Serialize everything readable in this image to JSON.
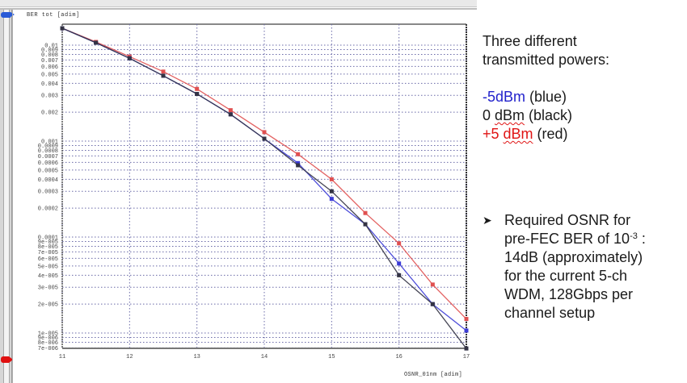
{
  "window": {
    "y_axis_title": "BER tot  [adim]",
    "x_axis_title": "OSNR_01nm [adim]"
  },
  "notes": {
    "heading_line1": "Three different",
    "heading_line2": "transmitted powers:",
    "legend": [
      {
        "label": "-5dBm",
        "suffix": " (blue)",
        "color": "#2222cc"
      },
      {
        "label_prefix": "0 ",
        "label": "dBm",
        "suffix": " (black)",
        "color": "#1a1a1a"
      },
      {
        "label_prefix": "+5 ",
        "label": "dBm",
        "suffix": " (red)",
        "color": "#e01515"
      }
    ],
    "bullet": {
      "line1": "Required OSNR for",
      "line2_pre": "pre-FEC BER of 10",
      "line2_sup": "-3",
      "line2_post": " :",
      "line3": "14dB (approximately)",
      "line4": "for the current 5-ch",
      "line5": "WDM, 128Gbps per",
      "line6": "channel setup"
    }
  },
  "chart_data": {
    "type": "line",
    "title": "",
    "xlabel": "OSNR_01nm [adim]",
    "ylabel": "BER tot [adim]",
    "yscale": "log",
    "xlim": [
      11,
      17
    ],
    "ylim": [
      6.9e-06,
      0.015
    ],
    "grid": true,
    "x_ticks": [
      "11",
      "12",
      "13",
      "14",
      "15",
      "16",
      "17"
    ],
    "y_ticks": [
      "0.01",
      "0.009",
      "0.008",
      "0.007",
      "0.006",
      "0.005",
      "0.004",
      "0.003",
      "0.002",
      "0.001",
      "0.0009",
      "0.0008",
      "0.0007",
      "0.0006",
      "0.0005",
      "0.0004",
      "0.0003",
      "0.0002",
      "0.0001",
      "9e-005",
      "8e-005",
      "7e-005",
      "6e-005",
      "5e-005",
      "4e-005",
      "3e-005",
      "2e-005",
      "1e-005",
      "9e-006",
      "8e-006",
      "7e-006"
    ],
    "y_tick_values": [
      0.01,
      0.009,
      0.008,
      0.007,
      0.006,
      0.005,
      0.004,
      0.003,
      0.002,
      0.001,
      0.0009,
      0.0008,
      0.0007,
      0.0006,
      0.0005,
      0.0004,
      0.0003,
      0.0002,
      0.0001,
      9e-05,
      8e-05,
      7e-05,
      6e-05,
      5e-05,
      4e-05,
      3e-05,
      2e-05,
      1e-05,
      9e-06,
      8e-06,
      7e-06
    ],
    "x": [
      11,
      11.5,
      12,
      12.5,
      13,
      13.5,
      14,
      14.5,
      15,
      15.5,
      16,
      16.5,
      17
    ],
    "series": [
      {
        "name": "-5dBm (blue)",
        "color": "#3b3bd6",
        "values": [
          0.015,
          0.0106,
          0.0073,
          0.0048,
          0.0031,
          0.0019,
          0.00106,
          0.00059,
          0.00025,
          0.000136,
          5.3e-05,
          2e-05,
          1.06e-05
        ]
      },
      {
        "name": "0 dBm (black)",
        "color": "#333344",
        "values": [
          0.015,
          0.0106,
          0.0073,
          0.0048,
          0.0031,
          0.0019,
          0.00106,
          0.00056,
          0.0003,
          0.000136,
          4e-05,
          2e-05,
          6.9e-06
        ]
      },
      {
        "name": "+5 dBm (red)",
        "color": "#e05050",
        "values": [
          0.015,
          0.0108,
          0.0076,
          0.0053,
          0.0035,
          0.0021,
          0.00124,
          0.00073,
          0.0004,
          0.000178,
          8.6e-05,
          3.2e-05,
          1.4e-05
        ]
      }
    ]
  }
}
